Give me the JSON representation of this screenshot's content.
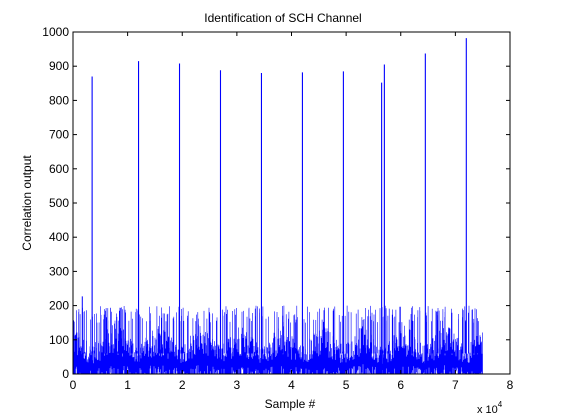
{
  "chart_data": {
    "type": "line",
    "title": "Identification of SCH Channel",
    "xlabel": "Sample #",
    "ylabel": "Correlation output",
    "x_scale_note": {
      "prefix": "x 10",
      "exponent": "4"
    },
    "xlim": [
      0,
      8
    ],
    "ylim": [
      0,
      1000
    ],
    "x_unit_multiplier": 10000,
    "xticks": [
      0,
      1,
      2,
      3,
      4,
      5,
      6,
      7,
      8
    ],
    "yticks": [
      0,
      100,
      200,
      300,
      400,
      500,
      600,
      700,
      800,
      900,
      1000
    ],
    "grid": false,
    "legend": "none",
    "series": [
      {
        "color": "#0000ff",
        "x_range": [
          0,
          7.5
        ],
        "noise_band": {
          "typical_max": 150,
          "peak_envelope": 200
        },
        "early_spike": {
          "x": 0.17,
          "y": 227
        },
        "peaks": [
          {
            "x": 0.35,
            "y": 870
          },
          {
            "x": 1.2,
            "y": 915
          },
          {
            "x": 1.95,
            "y": 908
          },
          {
            "x": 2.7,
            "y": 888
          },
          {
            "x": 3.45,
            "y": 880
          },
          {
            "x": 4.2,
            "y": 882
          },
          {
            "x": 4.95,
            "y": 885
          },
          {
            "x": 5.65,
            "y": 852
          },
          {
            "x": 5.7,
            "y": 905
          },
          {
            "x": 6.45,
            "y": 937
          },
          {
            "x": 7.2,
            "y": 982
          }
        ]
      }
    ]
  }
}
